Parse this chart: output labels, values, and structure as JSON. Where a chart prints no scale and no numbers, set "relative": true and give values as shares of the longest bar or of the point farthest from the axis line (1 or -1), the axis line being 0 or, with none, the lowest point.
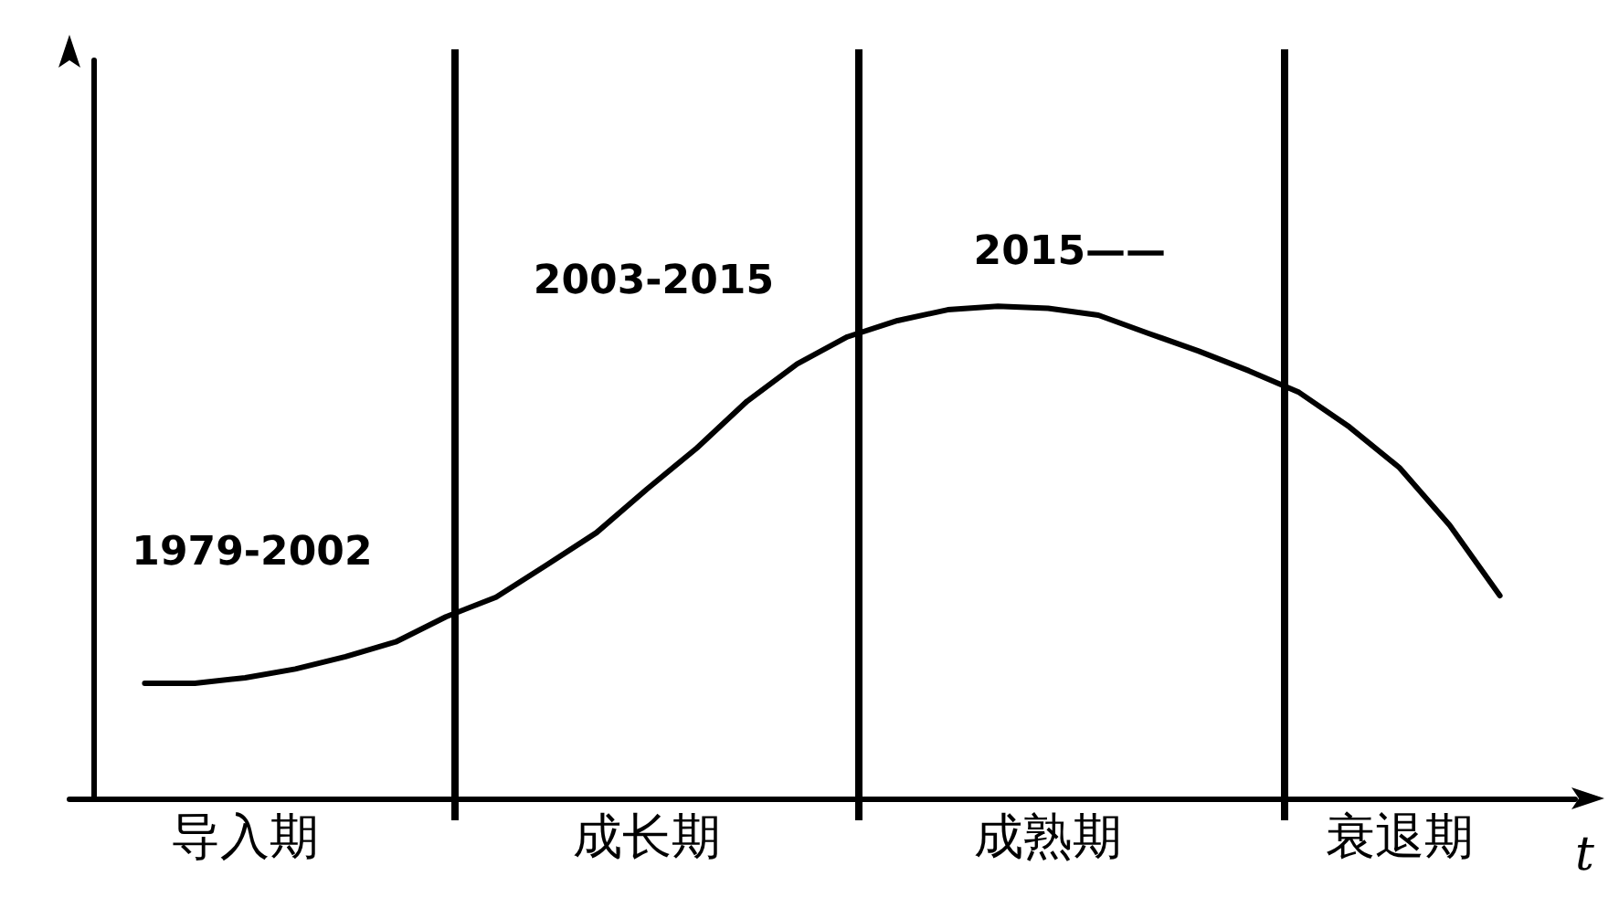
{
  "chart_data": {
    "type": "line",
    "relative": true,
    "xlabel": "t",
    "marker": "none",
    "line_style": "solid",
    "categories": [
      null,
      null,
      null,
      "导入期",
      null,
      null,
      null,
      null,
      null,
      null,
      null,
      "成长期",
      null,
      null,
      null,
      null,
      null,
      null,
      null,
      "成熟期",
      null,
      null,
      null,
      null,
      null,
      null,
      "衰退期",
      null,
      null,
      null
    ],
    "series": [
      {
        "color": "#000000",
        "values": [
          null,
          0.234,
          0.234,
          0.245,
          0.263,
          0.288,
          0.318,
          0.369,
          0.409,
          0.474,
          0.54,
          0.628,
          0.712,
          0.807,
          0.883,
          0.938,
          0.971,
          0.993,
          1,
          0.996,
          0.982,
          0.945,
          0.909,
          0.869,
          0.825,
          0.755,
          0.672,
          0.555,
          0.412,
          null
        ]
      }
    ],
    "annotations": [
      "1979-2002",
      "2003-2015",
      "2015——"
    ]
  }
}
